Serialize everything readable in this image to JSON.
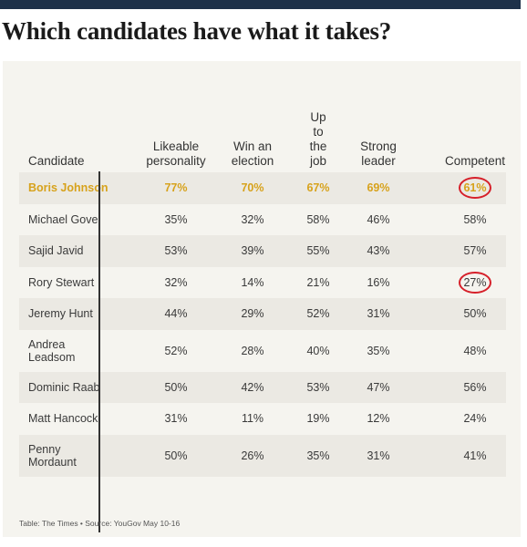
{
  "title": "Which candidates have what it takes?",
  "source": "Table: The Times • Source: YouGov May 10-16",
  "colors": {
    "highlight": "#d7a21c",
    "circle": "#d6202a",
    "bar": "#1e3149"
  },
  "chart_data": {
    "type": "table",
    "columns": [
      {
        "key": "candidate",
        "lines": [
          "Candidate"
        ]
      },
      {
        "key": "likeable",
        "lines": [
          "Likeable",
          "personality"
        ]
      },
      {
        "key": "win",
        "lines": [
          "Win an",
          "election"
        ]
      },
      {
        "key": "upto",
        "lines": [
          "Up",
          "to",
          "the",
          "job"
        ]
      },
      {
        "key": "strong",
        "lines": [
          "Strong",
          "leader"
        ]
      },
      {
        "key": "competent",
        "lines": [
          "Competent"
        ]
      }
    ],
    "rows": [
      {
        "name_lines": [
          "Boris Johnson"
        ],
        "values": [
          "77%",
          "70%",
          "67%",
          "69%",
          "61%"
        ],
        "highlight": true,
        "circled": [
          4
        ]
      },
      {
        "name_lines": [
          "Michael Gove"
        ],
        "values": [
          "35%",
          "32%",
          "58%",
          "46%",
          "58%"
        ]
      },
      {
        "name_lines": [
          "Sajid Javid"
        ],
        "values": [
          "53%",
          "39%",
          "55%",
          "43%",
          "57%"
        ]
      },
      {
        "name_lines": [
          "Rory Stewart"
        ],
        "values": [
          "32%",
          "14%",
          "21%",
          "16%",
          "27%"
        ],
        "circled": [
          4
        ]
      },
      {
        "name_lines": [
          "Jeremy Hunt"
        ],
        "values": [
          "44%",
          "29%",
          "52%",
          "31%",
          "50%"
        ]
      },
      {
        "name_lines": [
          "Andrea",
          "Leadsom"
        ],
        "values": [
          "52%",
          "28%",
          "40%",
          "35%",
          "48%"
        ]
      },
      {
        "name_lines": [
          "Dominic Raab"
        ],
        "values": [
          "50%",
          "42%",
          "53%",
          "47%",
          "56%"
        ]
      },
      {
        "name_lines": [
          "Matt Hancock"
        ],
        "values": [
          "31%",
          "11%",
          "19%",
          "12%",
          "24%"
        ]
      },
      {
        "name_lines": [
          "Penny",
          "Mordaunt"
        ],
        "values": [
          "50%",
          "26%",
          "35%",
          "31%",
          "41%"
        ]
      }
    ]
  }
}
